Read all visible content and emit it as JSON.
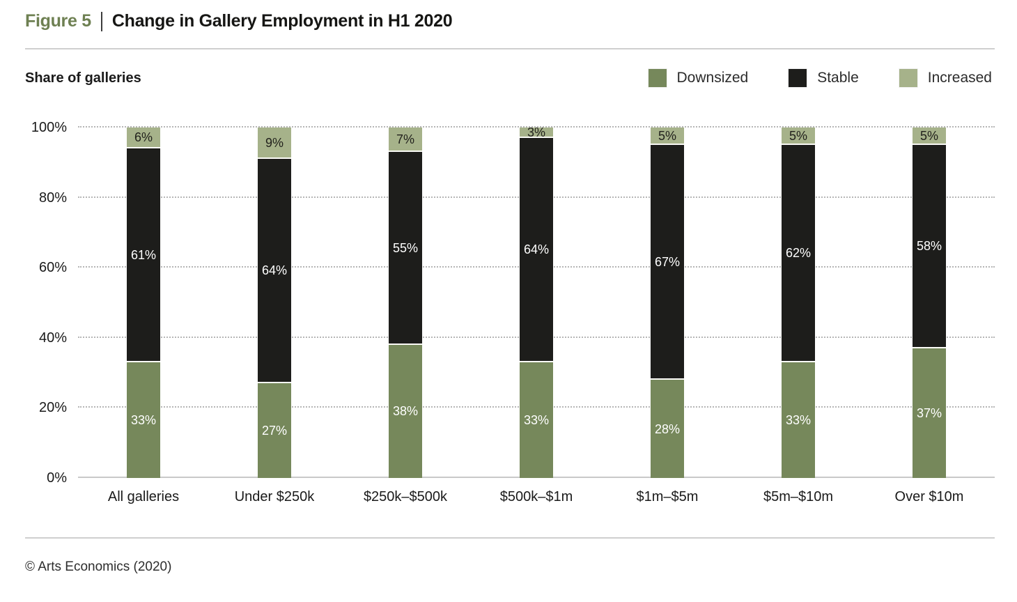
{
  "figure": {
    "label": "Figure 5",
    "title": "Change in Gallery Employment in H1 2020",
    "footer": "© Arts Economics (2020)"
  },
  "axis_title": "Share of galleries",
  "colors": {
    "downsized": "#76885B",
    "stable": "#1D1D1B",
    "increased": "#A6B28A",
    "figure_label_accent": "#6E8052",
    "gridline": "#B5B5B5",
    "baseline": "#C9C9C9"
  },
  "chart_data": {
    "type": "bar",
    "stacked": true,
    "title": "Change in Gallery Employment in H1 2020",
    "ylabel": "Share of galleries",
    "ylim": [
      0,
      100
    ],
    "yticks": [
      0,
      20,
      40,
      60,
      80,
      100
    ],
    "ytick_suffix": "%",
    "grid": "horizontal-dotted-at-20pct-solid-baseline",
    "legend_position": "top-right",
    "categories": [
      "All galleries",
      "Under $250k",
      "$250k–$500k",
      "$500k–$1m",
      "$1m–$5m",
      "$5m–$10m",
      "Over $10m"
    ],
    "series": [
      {
        "name": "Downsized",
        "color": "#76885B",
        "label_color": "#FFFFFF",
        "values": [
          33,
          27,
          38,
          33,
          28,
          33,
          37
        ]
      },
      {
        "name": "Stable",
        "color": "#1D1D1B",
        "label_color": "#FFFFFF",
        "values": [
          61,
          64,
          55,
          64,
          67,
          62,
          58
        ]
      },
      {
        "name": "Increased",
        "color": "#A6B28A",
        "label_color": "#21211C",
        "values": [
          6,
          9,
          7,
          3,
          5,
          5,
          5
        ]
      }
    ],
    "value_label_suffix": "%"
  }
}
